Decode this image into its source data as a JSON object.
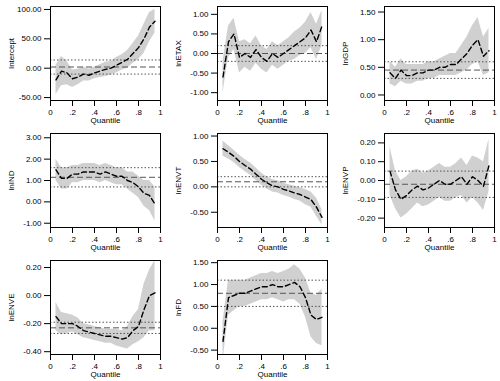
{
  "chart_data": [
    {
      "type": "line",
      "xlabel": "Quantile",
      "ylabel": "Intercept",
      "color": "#000000",
      "line_style": "dashed",
      "x": [
        0.05,
        0.1,
        0.15,
        0.2,
        0.25,
        0.3,
        0.35,
        0.4,
        0.45,
        0.5,
        0.55,
        0.6,
        0.65,
        0.7,
        0.75,
        0.8,
        0.85,
        0.9,
        0.95
      ],
      "values": [
        -20,
        -5,
        -8,
        -18,
        -15,
        -10,
        -12,
        -8,
        -5,
        -2,
        0,
        5,
        10,
        15,
        25,
        35,
        50,
        70,
        80
      ],
      "lower": [
        -45,
        -30,
        -28,
        -33,
        -28,
        -22,
        -22,
        -18,
        -16,
        -14,
        -12,
        -8,
        -3,
        0,
        8,
        15,
        25,
        45,
        60
      ],
      "upper": [
        5,
        20,
        12,
        -3,
        -2,
        2,
        -2,
        2,
        6,
        10,
        12,
        18,
        23,
        30,
        42,
        55,
        75,
        95,
        100
      ],
      "ols": 2,
      "ols_lower": -10,
      "ols_upper": 14,
      "xlim": [
        0,
        1
      ],
      "xticks": [
        0,
        {
          "value": 0.2,
          "label": ".2"
        },
        {
          "value": 0.4,
          "label": ".4"
        },
        {
          "value": 0.6,
          "label": ".6"
        },
        {
          "value": 0.8,
          "label": ".8"
        },
        1
      ],
      "ylim": [
        -55,
        105
      ],
      "yticks": [
        {
          "value": -50,
          "label": "-50.00"
        },
        {
          "value": 0,
          "label": "0.00"
        },
        {
          "value": 50,
          "label": "50.00"
        },
        {
          "value": 100,
          "label": "100.00"
        }
      ]
    },
    {
      "type": "line",
      "xlabel": "Quantile",
      "ylabel": "lnETAX",
      "color": "#000000",
      "line_style": "dashed",
      "x": [
        0.05,
        0.1,
        0.15,
        0.2,
        0.25,
        0.3,
        0.35,
        0.4,
        0.45,
        0.5,
        0.55,
        0.6,
        0.65,
        0.7,
        0.75,
        0.8,
        0.85,
        0.9,
        0.95
      ],
      "values": [
        -0.6,
        0.3,
        0.5,
        -0.1,
        0.0,
        -0.1,
        0.1,
        -0.1,
        -0.2,
        0.0,
        -0.1,
        0.0,
        0.1,
        0.2,
        0.3,
        0.4,
        0.6,
        0.3,
        0.7
      ],
      "lower": [
        -1.0,
        -0.1,
        0.1,
        -0.5,
        -0.35,
        -0.45,
        -0.25,
        -0.4,
        -0.5,
        -0.3,
        -0.4,
        -0.3,
        -0.2,
        -0.15,
        -0.05,
        0.0,
        0.15,
        -0.15,
        0.2
      ],
      "upper": [
        -0.2,
        0.7,
        0.9,
        0.3,
        0.35,
        0.25,
        0.45,
        0.2,
        0.1,
        0.3,
        0.2,
        0.3,
        0.4,
        0.55,
        0.65,
        0.8,
        1.05,
        0.75,
        1.1
      ],
      "ols": 0.0,
      "ols_lower": -0.2,
      "ols_upper": 0.2,
      "xlim": [
        0,
        1
      ],
      "xticks": [
        0,
        {
          "value": 0.2,
          "label": ".2"
        },
        {
          "value": 0.4,
          "label": ".4"
        },
        {
          "value": 0.6,
          "label": ".6"
        },
        {
          "value": 0.8,
          "label": ".8"
        },
        1
      ],
      "ylim": [
        -1.2,
        1.2
      ],
      "yticks": [
        {
          "value": -1,
          "label": "-1.00"
        },
        {
          "value": -0.5,
          "label": "-0.50"
        },
        {
          "value": 0,
          "label": "0.00"
        },
        {
          "value": 0.5,
          "label": "0.50"
        },
        {
          "value": 1,
          "label": "1.00"
        }
      ]
    },
    {
      "type": "line",
      "xlabel": "Quantile",
      "ylabel": "lnGDP",
      "color": "#000000",
      "line_style": "dashed",
      "x": [
        0.05,
        0.1,
        0.15,
        0.2,
        0.25,
        0.3,
        0.35,
        0.4,
        0.45,
        0.5,
        0.55,
        0.6,
        0.65,
        0.7,
        0.75,
        0.8,
        0.85,
        0.9,
        0.95
      ],
      "values": [
        0.4,
        0.3,
        0.45,
        0.35,
        0.35,
        0.4,
        0.4,
        0.45,
        0.45,
        0.5,
        0.5,
        0.55,
        0.55,
        0.65,
        0.75,
        0.9,
        1.0,
        0.7,
        0.8
      ],
      "lower": [
        0.2,
        0.15,
        0.25,
        0.2,
        0.2,
        0.25,
        0.25,
        0.3,
        0.3,
        0.35,
        0.35,
        0.35,
        0.35,
        0.4,
        0.45,
        0.55,
        0.6,
        0.35,
        0.4
      ],
      "upper": [
        0.6,
        0.5,
        0.65,
        0.55,
        0.55,
        0.55,
        0.55,
        0.6,
        0.6,
        0.65,
        0.7,
        0.75,
        0.75,
        0.9,
        1.05,
        1.25,
        1.4,
        1.05,
        1.2
      ],
      "ols": 0.45,
      "ols_lower": 0.3,
      "ols_upper": 0.6,
      "xlim": [
        0,
        1
      ],
      "xticks": [
        0,
        {
          "value": 0.2,
          "label": ".2"
        },
        {
          "value": 0.4,
          "label": ".4"
        },
        {
          "value": 0.6,
          "label": ".6"
        },
        {
          "value": 0.8,
          "label": ".8"
        },
        1
      ],
      "ylim": [
        -0.1,
        1.6
      ],
      "yticks": [
        {
          "value": 0,
          "label": "0.00"
        },
        {
          "value": 0.5,
          "label": "0.50"
        },
        {
          "value": 1,
          "label": "1.00"
        },
        {
          "value": 1.5,
          "label": "1.50"
        }
      ]
    },
    {
      "type": "line",
      "xlabel": "Quantile",
      "ylabel": "lnIND",
      "color": "#000000",
      "line_style": "dashed",
      "x": [
        0.05,
        0.1,
        0.15,
        0.2,
        0.25,
        0.3,
        0.35,
        0.4,
        0.45,
        0.5,
        0.55,
        0.6,
        0.65,
        0.7,
        0.75,
        0.8,
        0.85,
        0.9,
        0.95
      ],
      "values": [
        1.5,
        1.1,
        1.1,
        1.3,
        1.3,
        1.4,
        1.4,
        1.4,
        1.3,
        1.4,
        1.3,
        1.2,
        1.2,
        1.0,
        0.9,
        0.7,
        0.4,
        0.3,
        -0.1
      ],
      "lower": [
        1.0,
        0.6,
        0.6,
        0.9,
        0.9,
        1.0,
        1.0,
        1.0,
        0.9,
        1.0,
        0.9,
        0.8,
        0.8,
        0.6,
        0.4,
        0.2,
        -0.2,
        -0.4,
        -0.9
      ],
      "upper": [
        2.0,
        1.6,
        1.6,
        1.7,
        1.7,
        1.8,
        1.8,
        1.8,
        1.7,
        1.8,
        1.7,
        1.6,
        1.6,
        1.4,
        1.4,
        1.2,
        1.0,
        1.0,
        0.7
      ],
      "ols": 1.15,
      "ols_lower": 0.7,
      "ols_upper": 1.6,
      "xlim": [
        0,
        1
      ],
      "xticks": [
        0,
        {
          "value": 0.2,
          "label": ".2"
        },
        {
          "value": 0.4,
          "label": ".4"
        },
        {
          "value": 0.6,
          "label": ".6"
        },
        {
          "value": 0.8,
          "label": ".8"
        },
        1
      ],
      "ylim": [
        -1.2,
        3.2
      ],
      "yticks": [
        {
          "value": -1,
          "label": "-1.00"
        },
        {
          "value": 0,
          "label": "0.00"
        },
        {
          "value": 1,
          "label": "1.00"
        },
        {
          "value": 2,
          "label": "2.00"
        },
        {
          "value": 3,
          "label": "3.00"
        }
      ]
    },
    {
      "type": "line",
      "xlabel": "Quantile",
      "ylabel": "lnENVT",
      "color": "#000000",
      "line_style": "dashed",
      "x": [
        0.05,
        0.1,
        0.15,
        0.2,
        0.25,
        0.3,
        0.35,
        0.4,
        0.45,
        0.5,
        0.55,
        0.6,
        0.65,
        0.7,
        0.75,
        0.8,
        0.85,
        0.9,
        0.95
      ],
      "values": [
        0.75,
        0.68,
        0.6,
        0.5,
        0.42,
        0.35,
        0.25,
        0.15,
        0.08,
        0.02,
        0.0,
        -0.05,
        -0.08,
        -0.12,
        -0.15,
        -0.2,
        -0.25,
        -0.4,
        -0.6
      ],
      "lower": [
        0.6,
        0.55,
        0.48,
        0.38,
        0.3,
        0.23,
        0.13,
        0.03,
        -0.04,
        -0.1,
        -0.12,
        -0.17,
        -0.2,
        -0.25,
        -0.28,
        -0.35,
        -0.4,
        -0.58,
        -0.75
      ],
      "upper": [
        0.9,
        0.81,
        0.72,
        0.62,
        0.54,
        0.47,
        0.37,
        0.27,
        0.2,
        0.14,
        0.12,
        0.07,
        0.04,
        0.01,
        -0.02,
        -0.05,
        -0.1,
        -0.22,
        -0.45
      ],
      "ols": 0.1,
      "ols_lower": 0.0,
      "ols_upper": 0.2,
      "xlim": [
        0,
        1
      ],
      "xticks": [
        0,
        {
          "value": 0.2,
          "label": ".2"
        },
        {
          "value": 0.4,
          "label": ".4"
        },
        {
          "value": 0.6,
          "label": ".6"
        },
        {
          "value": 0.8,
          "label": ".8"
        },
        1
      ],
      "ylim": [
        -0.8,
        1.05
      ],
      "yticks": [
        {
          "value": -0.5,
          "label": "-0.50"
        },
        {
          "value": 0,
          "label": "0.00"
        },
        {
          "value": 0.5,
          "label": "0.50"
        },
        {
          "value": 1,
          "label": "1.00"
        }
      ]
    },
    {
      "type": "line",
      "xlabel": "Quantile",
      "ylabel": "lnENVP",
      "color": "#000000",
      "line_style": "dashed",
      "x": [
        0.05,
        0.1,
        0.15,
        0.2,
        0.25,
        0.3,
        0.35,
        0.4,
        0.45,
        0.5,
        0.55,
        0.6,
        0.65,
        0.7,
        0.75,
        0.8,
        0.85,
        0.9,
        0.95
      ],
      "values": [
        0.05,
        -0.05,
        -0.1,
        -0.08,
        -0.05,
        -0.03,
        -0.05,
        -0.04,
        -0.02,
        0.0,
        -0.02,
        -0.02,
        0.0,
        0.02,
        -0.02,
        0.02,
        0.0,
        -0.03,
        0.08
      ],
      "lower": [
        -0.08,
        -0.15,
        -0.2,
        -0.18,
        -0.15,
        -0.12,
        -0.14,
        -0.13,
        -0.11,
        -0.09,
        -0.11,
        -0.11,
        -0.09,
        -0.08,
        -0.12,
        -0.09,
        -0.12,
        -0.16,
        -0.06
      ],
      "upper": [
        0.18,
        0.05,
        0.0,
        0.02,
        0.05,
        0.06,
        0.04,
        0.05,
        0.07,
        0.09,
        0.07,
        0.07,
        0.09,
        0.12,
        0.08,
        0.13,
        0.12,
        0.1,
        0.22
      ],
      "ols": -0.02,
      "ols_lower": -0.09,
      "ols_upper": 0.05,
      "xlim": [
        0,
        1
      ],
      "xticks": [
        0,
        {
          "value": 0.2,
          "label": ".2"
        },
        {
          "value": 0.4,
          "label": ".4"
        },
        {
          "value": 0.6,
          "label": ".6"
        },
        {
          "value": 0.8,
          "label": ".8"
        },
        1
      ],
      "ylim": [
        -0.25,
        0.25
      ],
      "yticks": [
        {
          "value": -0.2,
          "label": "-0.20"
        },
        {
          "value": -0.1,
          "label": "-0.10"
        },
        {
          "value": 0,
          "label": "0.00"
        },
        {
          "value": 0.1,
          "label": "0.10"
        },
        {
          "value": 0.2,
          "label": "0.20"
        }
      ]
    },
    {
      "type": "line",
      "xlabel": "Quantile",
      "ylabel": "lnENVE",
      "color": "#000000",
      "line_style": "dashed",
      "x": [
        0.05,
        0.1,
        0.15,
        0.2,
        0.25,
        0.3,
        0.35,
        0.4,
        0.45,
        0.5,
        0.55,
        0.6,
        0.65,
        0.7,
        0.75,
        0.8,
        0.85,
        0.9,
        0.95
      ],
      "values": [
        -0.15,
        -0.2,
        -0.2,
        -0.2,
        -0.22,
        -0.25,
        -0.26,
        -0.27,
        -0.28,
        -0.29,
        -0.29,
        -0.3,
        -0.31,
        -0.3,
        -0.25,
        -0.22,
        -0.1,
        0.0,
        0.02
      ],
      "lower": [
        -0.25,
        -0.28,
        -0.27,
        -0.26,
        -0.28,
        -0.3,
        -0.31,
        -0.32,
        -0.33,
        -0.34,
        -0.34,
        -0.36,
        -0.37,
        -0.38,
        -0.35,
        -0.33,
        -0.3,
        -0.25,
        -0.25
      ],
      "upper": [
        -0.05,
        -0.12,
        -0.13,
        -0.14,
        -0.16,
        -0.2,
        -0.21,
        -0.22,
        -0.23,
        -0.24,
        -0.24,
        -0.24,
        -0.25,
        -0.22,
        -0.15,
        -0.1,
        0.08,
        0.18,
        0.25
      ],
      "ols": -0.23,
      "ols_lower": -0.27,
      "ols_upper": -0.19,
      "xlim": [
        0,
        1
      ],
      "xticks": [
        0,
        {
          "value": 0.2,
          "label": ".2"
        },
        {
          "value": 0.4,
          "label": ".4"
        },
        {
          "value": 0.6,
          "label": ".6"
        },
        {
          "value": 0.8,
          "label": ".8"
        },
        1
      ],
      "ylim": [
        -0.42,
        0.25
      ],
      "yticks": [
        {
          "value": -0.4,
          "label": "-0.40"
        },
        {
          "value": -0.2,
          "label": "-0.20"
        },
        {
          "value": 0,
          "label": "0.00"
        },
        {
          "value": 0.2,
          "label": "0.20"
        }
      ]
    },
    {
      "type": "line",
      "xlabel": "Quantile",
      "ylabel": "lnFD",
      "color": "#000000",
      "line_style": "dashed",
      "x": [
        0.05,
        0.1,
        0.15,
        0.2,
        0.25,
        0.3,
        0.35,
        0.4,
        0.45,
        0.5,
        0.55,
        0.6,
        0.65,
        0.7,
        0.75,
        0.8,
        0.85,
        0.9,
        0.95
      ],
      "values": [
        -0.3,
        0.7,
        0.75,
        0.8,
        0.8,
        0.85,
        0.9,
        0.95,
        0.95,
        1.0,
        0.95,
        0.95,
        1.0,
        1.05,
        0.95,
        0.7,
        0.3,
        0.2,
        0.25
      ],
      "lower": [
        -0.75,
        0.3,
        0.4,
        0.5,
        0.5,
        0.55,
        0.6,
        0.65,
        0.65,
        0.7,
        0.65,
        0.6,
        0.65,
        0.65,
        0.55,
        0.25,
        -0.2,
        -0.35,
        -0.4
      ],
      "upper": [
        0.15,
        1.1,
        1.1,
        1.1,
        1.1,
        1.15,
        1.2,
        1.25,
        1.25,
        1.3,
        1.25,
        1.3,
        1.35,
        1.45,
        1.35,
        1.15,
        0.8,
        0.75,
        0.9
      ],
      "ols": 0.8,
      "ols_lower": 0.5,
      "ols_upper": 1.1,
      "xlim": [
        0,
        1
      ],
      "xticks": [
        0,
        {
          "value": 0.2,
          "label": ".2"
        },
        {
          "value": 0.4,
          "label": ".4"
        },
        {
          "value": 0.6,
          "label": ".6"
        },
        {
          "value": 0.8,
          "label": ".8"
        },
        1
      ],
      "ylim": [
        -0.6,
        1.55
      ],
      "yticks": [
        {
          "value": -0.5,
          "label": "-0.50"
        },
        {
          "value": 0,
          "label": "0.00"
        },
        {
          "value": 0.5,
          "label": "0.50"
        },
        {
          "value": 1,
          "label": "1.00"
        },
        {
          "value": 1.5,
          "label": "1.50"
        }
      ]
    }
  ]
}
